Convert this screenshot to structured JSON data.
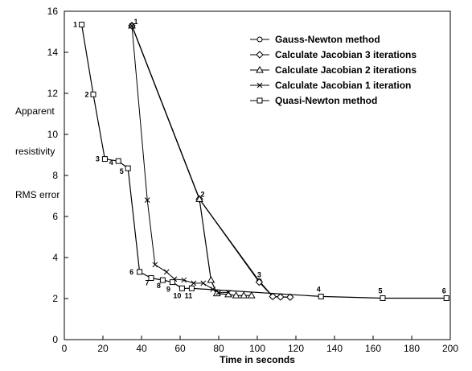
{
  "chart_data": {
    "type": "line",
    "title": "",
    "xlabel": "Time in seconds",
    "ylabel_lines": [
      "Apparent",
      "resistivity",
      "RMS error"
    ],
    "xlim": [
      0,
      200
    ],
    "ylim": [
      0,
      16
    ],
    "xticks": [
      0,
      20,
      40,
      60,
      80,
      100,
      120,
      140,
      160,
      180,
      200
    ],
    "yticks": [
      0,
      2,
      4,
      6,
      8,
      10,
      12,
      14,
      16
    ],
    "grid": false,
    "legend_position": "top-right",
    "series": [
      {
        "name": "Gauss-Newton method",
        "marker": "circle",
        "points": [
          [
            35,
            15.3
          ],
          [
            70,
            6.85
          ],
          [
            101,
            2.85
          ],
          [
            108,
            2.1
          ],
          [
            112,
            2.08
          ],
          [
            117,
            2.07
          ]
        ]
      },
      {
        "name": "Calculate Jacobian 3 iterations",
        "marker": "diamond",
        "points": [
          [
            35,
            15.3
          ],
          [
            70,
            6.85
          ],
          [
            101,
            2.8
          ],
          [
            108,
            2.1
          ],
          [
            112,
            2.08
          ],
          [
            117,
            2.07
          ]
        ]
      },
      {
        "name": "Calculate Jacobian 2 iterations",
        "marker": "triangle",
        "points": [
          [
            35,
            15.3
          ],
          [
            70,
            6.85
          ],
          [
            76,
            2.9
          ],
          [
            79,
            2.25
          ],
          [
            85,
            2.2
          ],
          [
            89,
            2.15
          ],
          [
            93,
            2.15
          ],
          [
            97,
            2.15
          ]
        ]
      },
      {
        "name": "Calculate Jacobian 1 iteration",
        "marker": "x",
        "points": [
          [
            35,
            15.3
          ],
          [
            43,
            6.8
          ],
          [
            47,
            3.65
          ],
          [
            53,
            3.3
          ],
          [
            57,
            2.95
          ],
          [
            62,
            2.9
          ],
          [
            67,
            2.75
          ],
          [
            72,
            2.75
          ],
          [
            77,
            2.45
          ],
          [
            80,
            2.3
          ],
          [
            85,
            2.3
          ]
        ]
      },
      {
        "name": "Quasi-Newton method",
        "marker": "square",
        "points": [
          [
            9,
            15.35
          ],
          [
            15,
            11.95
          ],
          [
            21,
            8.8
          ],
          [
            28,
            8.7
          ],
          [
            33,
            8.35
          ],
          [
            39,
            3.3
          ],
          [
            45,
            3.0
          ],
          [
            51,
            2.9
          ],
          [
            56,
            2.8
          ],
          [
            61,
            2.5
          ],
          [
            66,
            2.5
          ],
          [
            133,
            2.1
          ],
          [
            165,
            2.02
          ],
          [
            198,
            2.02
          ]
        ]
      }
    ],
    "annotations": [
      {
        "text": "1",
        "x": 9,
        "y": 15.35
      },
      {
        "text": "2",
        "x": 15,
        "y": 11.95
      },
      {
        "text": "3",
        "x": 21,
        "y": 8.8
      },
      {
        "text": "4",
        "x": 28,
        "y": 8.7
      },
      {
        "text": "5",
        "x": 33,
        "y": 8.35
      },
      {
        "text": "6",
        "x": 39,
        "y": 3.3
      },
      {
        "text": "7",
        "x": 45,
        "y": 3.0
      },
      {
        "text": "8",
        "x": 51,
        "y": 2.9
      },
      {
        "text": "9",
        "x": 56,
        "y": 2.8
      },
      {
        "text": "10",
        "x": 61,
        "y": 2.5
      },
      {
        "text": "11",
        "x": 66,
        "y": 2.5
      },
      {
        "text": "1",
        "x": 35,
        "y": 15.3
      },
      {
        "text": "2",
        "x": 70,
        "y": 6.85
      },
      {
        "text": "3",
        "x": 101,
        "y": 2.85
      },
      {
        "text": "4",
        "x": 133,
        "y": 2.1
      },
      {
        "text": "5",
        "x": 165,
        "y": 2.02
      },
      {
        "text": "6",
        "x": 198,
        "y": 2.02
      }
    ]
  }
}
